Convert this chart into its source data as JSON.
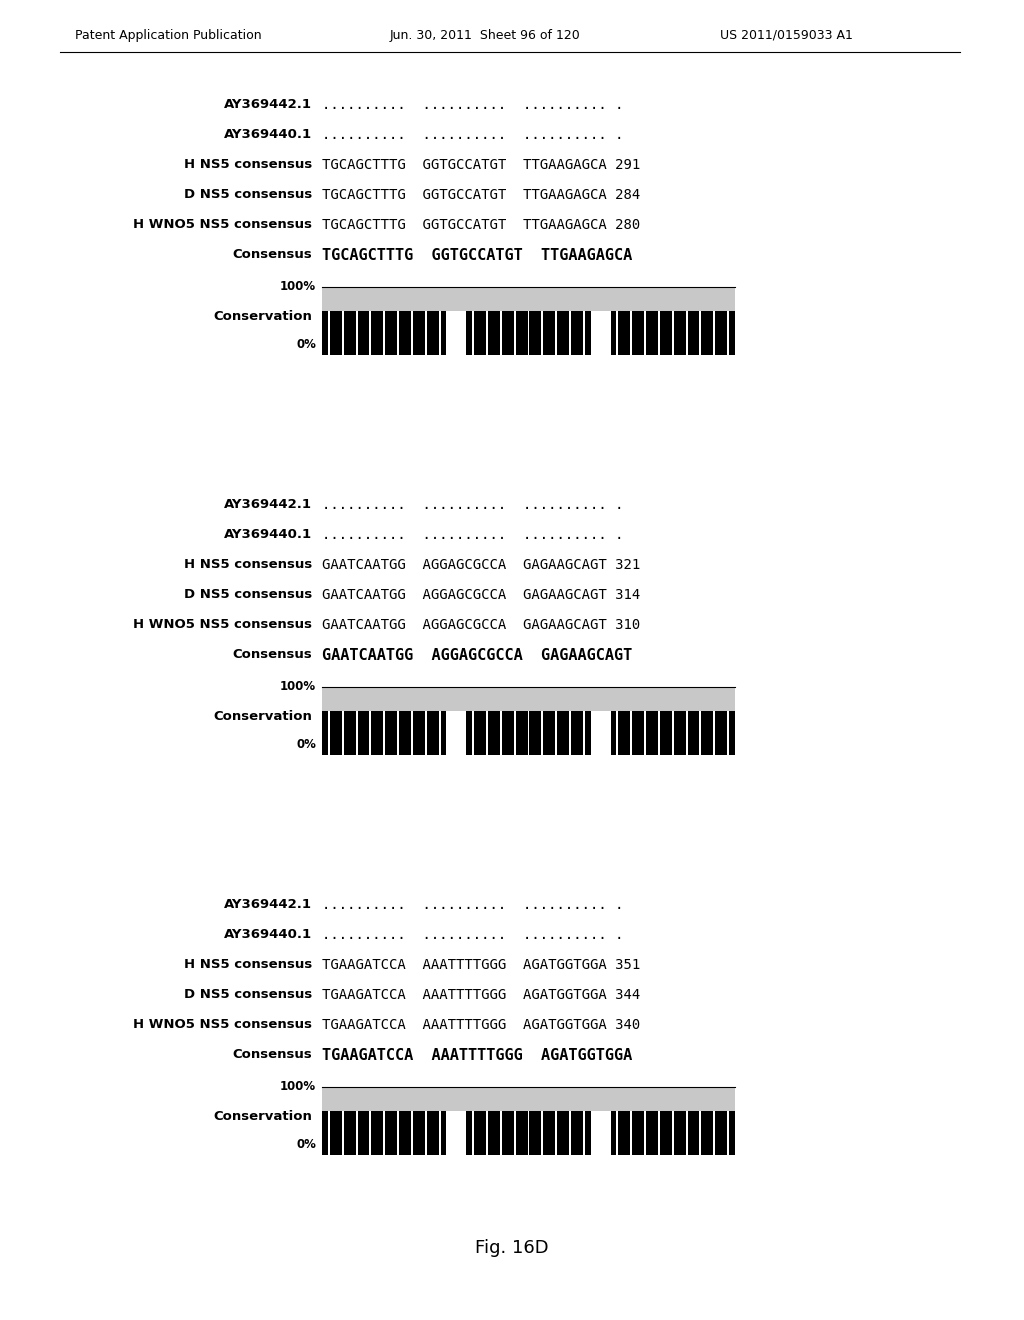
{
  "header_left": "Patent Application Publication",
  "header_mid": "Jun. 30, 2011  Sheet 96 of 120",
  "header_right": "US 2011/0159033 A1",
  "figure_label": "Fig. 16D",
  "background_color": "#ffffff",
  "sections": [
    {
      "rows": [
        {
          "label": "AY369442.1",
          "seq": "..........  ..........  .......... .",
          "bold_label": false,
          "bold_seq": false
        },
        {
          "label": "AY369440.1",
          "seq": "..........  ..........  .......... .",
          "bold_label": false,
          "bold_seq": false
        },
        {
          "label": "H NS5 consensus",
          "seq": "TGCAGCTTTG  GGTGCCATGT  TTGAAGAGCA 291",
          "bold_label": false,
          "bold_seq": false
        },
        {
          "label": "D NS5 consensus",
          "seq": "TGCAGCTTTG  GGTGCCATGT  TTGAAGAGCA 284",
          "bold_label": false,
          "bold_seq": false
        },
        {
          "label": "H WNO5 NS5 consensus",
          "seq": "TGCAGCTTTG  GGTGCCATGT  TTGAAGAGCA 280",
          "bold_label": false,
          "bold_seq": false
        },
        {
          "label": "Consensus",
          "seq": "TGCAGCTTTG  GGTGCCATGT  TTGAAGAGCA",
          "bold_label": true,
          "bold_seq": true
        }
      ],
      "conservation_label": "Conservation",
      "pct100": "100%",
      "pct0": "0%"
    },
    {
      "rows": [
        {
          "label": "AY369442.1",
          "seq": "..........  ..........  .......... .",
          "bold_label": false,
          "bold_seq": false
        },
        {
          "label": "AY369440.1",
          "seq": "..........  ..........  .......... .",
          "bold_label": false,
          "bold_seq": false
        },
        {
          "label": "H NS5 consensus",
          "seq": "GAATCAATGG  AGGAGCGCCA  GAGAAGCAGT 321",
          "bold_label": false,
          "bold_seq": false
        },
        {
          "label": "D NS5 consensus",
          "seq": "GAATCAATGG  AGGAGCGCCA  GAGAAGCAGT 314",
          "bold_label": false,
          "bold_seq": false
        },
        {
          "label": "H WNO5 NS5 consensus",
          "seq": "GAATCAATGG  AGGAGCGCCA  GAGAAGCAGT 310",
          "bold_label": false,
          "bold_seq": false
        },
        {
          "label": "Consensus",
          "seq": "GAATCAATGG  AGGAGCGCCA  GAGAAGCAGT",
          "bold_label": true,
          "bold_seq": true
        }
      ],
      "conservation_label": "Conservation",
      "pct100": "100%",
      "pct0": "0%"
    },
    {
      "rows": [
        {
          "label": "AY369442.1",
          "seq": "..........  ..........  .......... .",
          "bold_label": false,
          "bold_seq": false
        },
        {
          "label": "AY369440.1",
          "seq": "..........  ..........  .......... .",
          "bold_label": false,
          "bold_seq": false
        },
        {
          "label": "H NS5 consensus",
          "seq": "TGAAGATCCA  AAATTTTGGG  AGATGGTGGA 351",
          "bold_label": false,
          "bold_seq": false
        },
        {
          "label": "D NS5 consensus",
          "seq": "TGAAGATCCA  AAATTTTGGG  AGATGGTGGA 344",
          "bold_label": false,
          "bold_seq": false
        },
        {
          "label": "H WNO5 NS5 consensus",
          "seq": "TGAAGATCCA  AAATTTTGGG  AGATGGTGGA 340",
          "bold_label": false,
          "bold_seq": false
        },
        {
          "label": "Consensus",
          "seq": "TGAAGATCCA  AAATTTTGGG  AGATGGTGGA",
          "bold_label": true,
          "bold_seq": true
        }
      ],
      "conservation_label": "Conservation",
      "pct100": "100%",
      "pct0": "0%"
    }
  ]
}
